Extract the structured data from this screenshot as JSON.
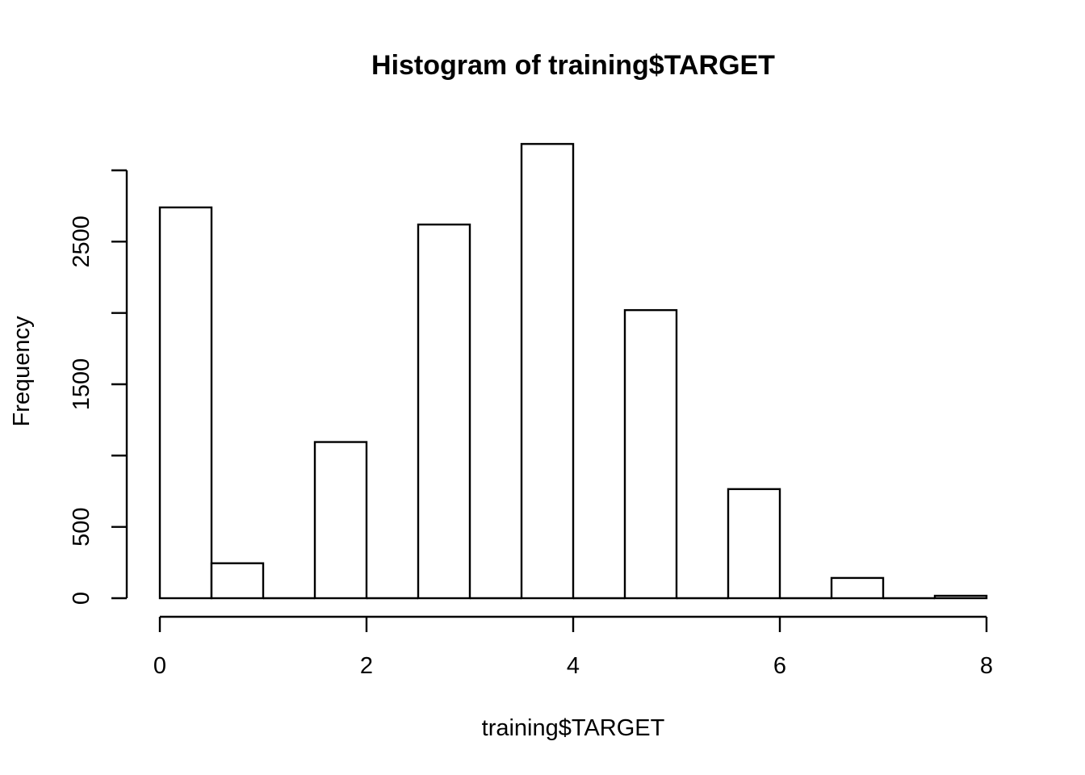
{
  "chart_data": {
    "type": "bar",
    "title": "Histogram of training$TARGET",
    "xlabel": "training$TARGET",
    "ylabel": "Frequency",
    "bins": [
      {
        "start": 0.0,
        "end": 0.5,
        "count": 2740
      },
      {
        "start": 0.5,
        "end": 1.0,
        "count": 245
      },
      {
        "start": 1.0,
        "end": 1.5,
        "count": 0
      },
      {
        "start": 1.5,
        "end": 2.0,
        "count": 1095
      },
      {
        "start": 2.0,
        "end": 2.5,
        "count": 0
      },
      {
        "start": 2.5,
        "end": 3.0,
        "count": 2620
      },
      {
        "start": 3.0,
        "end": 3.5,
        "count": 0
      },
      {
        "start": 3.5,
        "end": 4.0,
        "count": 3185
      },
      {
        "start": 4.0,
        "end": 4.5,
        "count": 0
      },
      {
        "start": 4.5,
        "end": 5.0,
        "count": 2020
      },
      {
        "start": 5.0,
        "end": 5.5,
        "count": 0
      },
      {
        "start": 5.5,
        "end": 6.0,
        "count": 765
      },
      {
        "start": 6.0,
        "end": 6.5,
        "count": 0
      },
      {
        "start": 6.5,
        "end": 7.0,
        "count": 142
      },
      {
        "start": 7.0,
        "end": 7.5,
        "count": 0
      },
      {
        "start": 7.5,
        "end": 8.0,
        "count": 17
      }
    ],
    "xlim": [
      0,
      8
    ],
    "ylim": [
      0,
      3000
    ],
    "x_ticks": [
      0,
      2,
      4,
      6,
      8
    ],
    "x_tick_labels": [
      "0",
      "2",
      "4",
      "6",
      "8"
    ],
    "y_ticks": [
      0,
      500,
      1000,
      1500,
      2000,
      2500,
      3000
    ],
    "y_tick_labels": [
      "0",
      "500",
      "",
      "1500",
      "",
      "2500",
      ""
    ],
    "grid": false,
    "legend": "none",
    "colors": {
      "bar_fill": "#ffffff",
      "bar_stroke": "#000000",
      "axis": "#000000",
      "text": "#000000",
      "background": "#ffffff"
    }
  }
}
